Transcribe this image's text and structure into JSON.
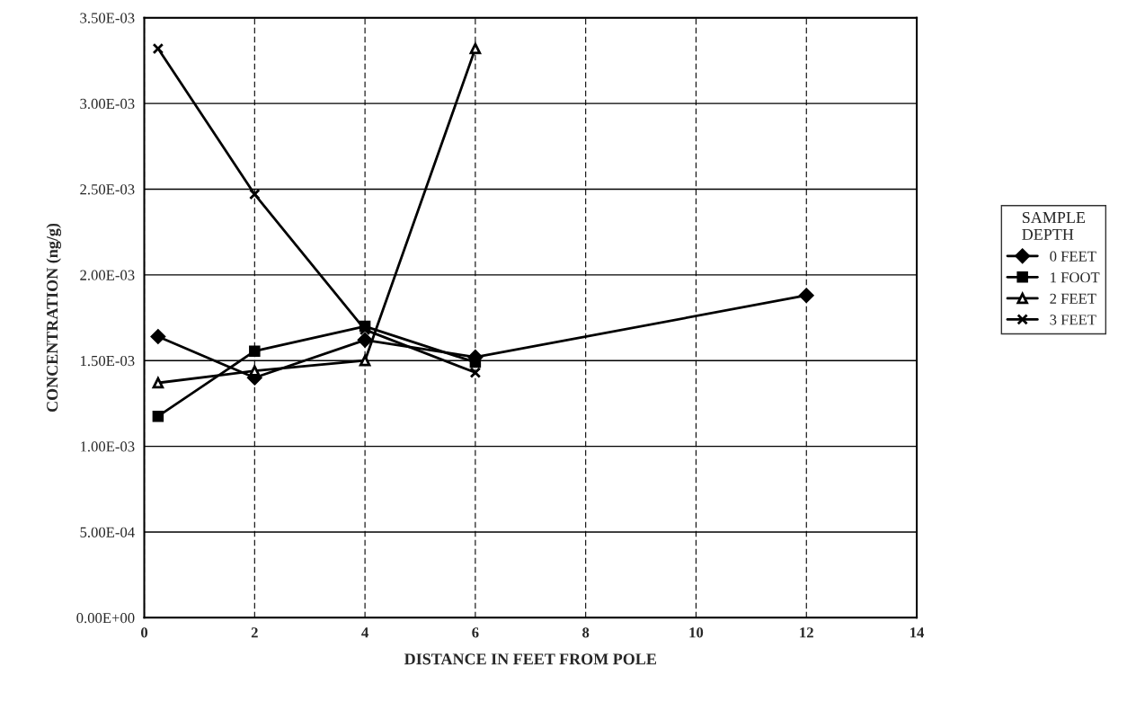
{
  "chart_data": {
    "type": "line",
    "xlabel": "DISTANCE IN FEET FROM POLE",
    "ylabel": "CONCENTRATION (ng/g)",
    "legend_title": "SAMPLE\nDEPTH",
    "series": [
      {
        "name": "0 FEET",
        "color": "#000000",
        "marker": "diamond",
        "x": [
          0.25,
          2,
          4,
          6,
          12
        ],
        "values": [
          0.00164,
          0.0014,
          0.00162,
          0.00152,
          0.00188
        ]
      },
      {
        "name": "1 FOOT",
        "color": "#000000",
        "marker": "square",
        "x": [
          0.25,
          2,
          4,
          6
        ],
        "values": [
          0.001175,
          0.001555,
          0.0017,
          0.00149
        ]
      },
      {
        "name": "2 FEET",
        "color": "#000000",
        "marker": "triangle",
        "x": [
          0.25,
          2,
          4,
          6
        ],
        "values": [
          0.00137,
          0.00144,
          0.0015,
          0.00332
        ]
      },
      {
        "name": "3 FEET",
        "color": "#000000",
        "marker": "cross",
        "x": [
          0.25,
          2,
          4,
          6
        ],
        "values": [
          0.00332,
          0.00247,
          0.00168,
          0.00143
        ]
      }
    ],
    "xlim": [
      0,
      14
    ],
    "xticks": [
      0,
      2,
      4,
      6,
      8,
      10,
      12,
      14
    ],
    "ylim": [
      0,
      0.0035
    ],
    "yticks": [
      {
        "value": 0,
        "label": "0.00E+00"
      },
      {
        "value": 0.0005,
        "label": "5.00E-04"
      },
      {
        "value": 0.001,
        "label": "1.00E-03"
      },
      {
        "value": 0.0015,
        "label": "1.50E-03"
      },
      {
        "value": 0.002,
        "label": "2.00E-03"
      },
      {
        "value": 0.0025,
        "label": "2.50E-03"
      },
      {
        "value": 0.003,
        "label": "3.00E-03"
      },
      {
        "value": 0.0035,
        "label": "3.50E-03"
      }
    ],
    "grid": true,
    "legend": "right",
    "line_style": "solid"
  }
}
